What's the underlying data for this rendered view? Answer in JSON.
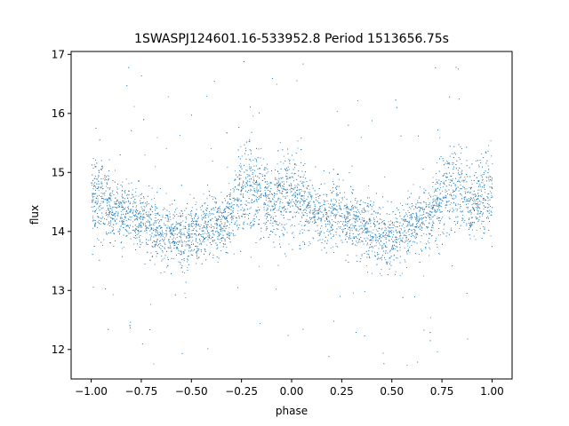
{
  "chart_data": {
    "type": "scatter",
    "title": "1SWASPJ124601.16-533952.8 Period 1513656.75s",
    "xlabel": "phase",
    "ylabel": "flux",
    "xlim": [
      -1.1,
      1.1
    ],
    "ylim": [
      11.5,
      17.05
    ],
    "xticks": [
      -1.0,
      -0.75,
      -0.5,
      -0.25,
      0.0,
      0.25,
      0.5,
      0.75,
      1.0
    ],
    "xtick_labels": [
      "−1.00",
      "−0.75",
      "−0.50",
      "−0.25",
      "0.00",
      "0.25",
      "0.50",
      "0.75",
      "1.00"
    ],
    "yticks": [
      12,
      13,
      14,
      15,
      16,
      17
    ],
    "ytick_labels": [
      "12",
      "13",
      "14",
      "15",
      "16",
      "17"
    ],
    "grid": false,
    "legend": "none",
    "series_color": "#1f77b4",
    "series": [
      {
        "points_description_free": true,
        "x": [
          -1.0,
          -0.95,
          -0.9,
          -0.85,
          -0.8,
          -0.75,
          -0.7,
          -0.65,
          -0.6,
          -0.55,
          -0.5,
          -0.45,
          -0.4,
          -0.35,
          -0.3,
          -0.25,
          -0.2,
          -0.15,
          -0.1,
          -0.05,
          0.0,
          0.05,
          0.1,
          0.15,
          0.2,
          0.25,
          0.3,
          0.35,
          0.4,
          0.45,
          0.5,
          0.55,
          0.6,
          0.65,
          0.7,
          0.75,
          0.8,
          0.85,
          0.9,
          0.95,
          1.0
        ],
        "y": [
          14.6,
          14.6,
          14.4,
          14.3,
          14.3,
          14.2,
          14.1,
          14.0,
          14.0,
          13.9,
          13.9,
          14.0,
          14.1,
          14.1,
          14.3,
          14.7,
          14.8,
          14.6,
          14.4,
          14.6,
          14.7,
          14.5,
          14.3,
          14.2,
          14.3,
          14.3,
          14.2,
          14.1,
          14.0,
          13.9,
          13.9,
          14.0,
          14.1,
          14.2,
          14.3,
          14.6,
          14.8,
          14.6,
          14.4,
          14.6,
          14.7
        ],
        "y_spread": [
          0.7,
          0.8,
          0.6,
          0.6,
          0.6,
          0.6,
          0.6,
          0.6,
          0.6,
          0.6,
          0.6,
          0.6,
          0.6,
          0.6,
          0.6,
          0.8,
          0.8,
          0.7,
          0.6,
          0.8,
          0.8,
          0.7,
          0.6,
          0.6,
          0.6,
          0.6,
          0.6,
          0.6,
          0.6,
          0.6,
          0.6,
          0.6,
          0.6,
          0.6,
          0.6,
          0.8,
          0.8,
          0.7,
          0.6,
          0.8,
          0.8
        ]
      }
    ]
  }
}
